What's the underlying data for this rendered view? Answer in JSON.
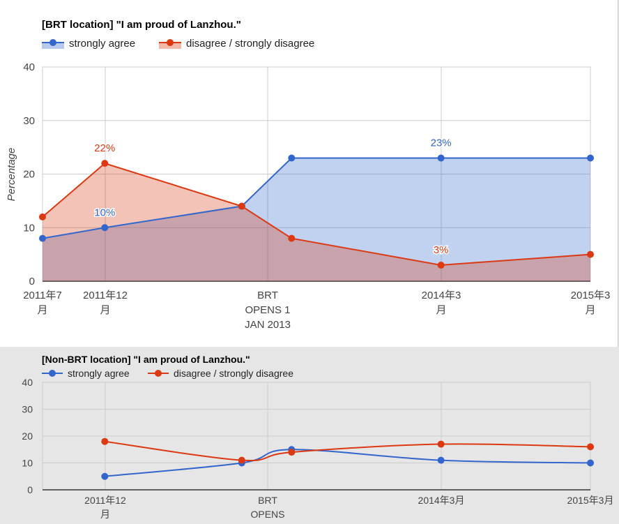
{
  "chart_data": [
    {
      "type": "area",
      "title": "[BRT location] \"I am proud of Lanzhou.\"",
      "ylabel": "Percentage",
      "xlabel": "",
      "ylim": [
        0,
        40
      ],
      "yticks": [
        0,
        10,
        20,
        30,
        40
      ],
      "grid": true,
      "legend_position": "top-left",
      "x_categories": [
        "2011年7月",
        "2011年12月",
        "BRT OPENS 1 JAN 2013",
        "2014年3月",
        "2015年3月"
      ],
      "colors": {
        "strongly_agree": "#3366cc",
        "disagree": "#dc3912"
      },
      "series": [
        {
          "name": "strongly agree",
          "points": [
            {
              "x": "2011-07",
              "y": 8
            },
            {
              "x": "2011-12",
              "y": 10,
              "label": "10%"
            },
            {
              "x": "2012-11",
              "y": 14
            },
            {
              "x": "2013-03",
              "y": 23
            },
            {
              "x": "2014-03",
              "y": 23,
              "label": "23%"
            },
            {
              "x": "2015-03",
              "y": 23
            }
          ]
        },
        {
          "name": "disagree / strongly disagree",
          "points": [
            {
              "x": "2011-07",
              "y": 12
            },
            {
              "x": "2011-12",
              "y": 22,
              "label": "22%"
            },
            {
              "x": "2012-11",
              "y": 14
            },
            {
              "x": "2013-03",
              "y": 8
            },
            {
              "x": "2014-03",
              "y": 3,
              "label": "3%"
            },
            {
              "x": "2015-03",
              "y": 5
            }
          ]
        }
      ]
    },
    {
      "type": "line",
      "title": "[Non-BRT location] \"I am proud of Lanzhou.\"",
      "ylabel": "",
      "xlabel": "",
      "ylim": [
        0,
        40
      ],
      "yticks": [
        0,
        10,
        20,
        30,
        40
      ],
      "grid": true,
      "legend_position": "top-left",
      "x_categories": [
        "2011年12月",
        "BRT OPENS",
        "2014年3月",
        "2015年3月"
      ],
      "colors": {
        "strongly_agree": "#3366cc",
        "disagree": "#dc3912"
      },
      "series": [
        {
          "name": "strongly agree",
          "points": [
            {
              "x": "2011-12",
              "y": 5
            },
            {
              "x": "2012-11",
              "y": 10
            },
            {
              "x": "2013-03",
              "y": 15
            },
            {
              "x": "2014-03",
              "y": 11
            },
            {
              "x": "2015-03",
              "y": 10
            }
          ]
        },
        {
          "name": "disagree / strongly disagree",
          "points": [
            {
              "x": "2011-12",
              "y": 18
            },
            {
              "x": "2012-11",
              "y": 11
            },
            {
              "x": "2013-03",
              "y": 14
            },
            {
              "x": "2014-03",
              "y": 17
            },
            {
              "x": "2015-03",
              "y": 16
            }
          ]
        }
      ]
    }
  ]
}
